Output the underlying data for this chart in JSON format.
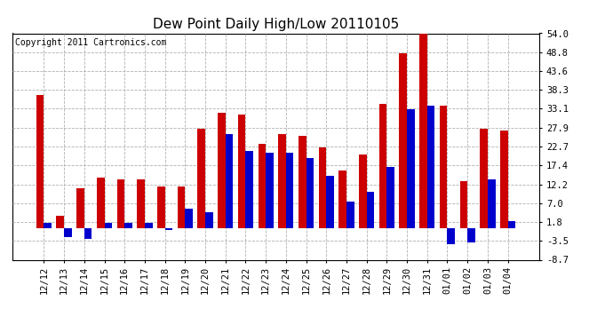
{
  "title": "Dew Point Daily High/Low 20110105",
  "copyright": "Copyright 2011 Cartronics.com",
  "dates": [
    "12/12",
    "12/13",
    "12/14",
    "12/15",
    "12/16",
    "12/17",
    "12/18",
    "12/19",
    "12/20",
    "12/21",
    "12/22",
    "12/23",
    "12/24",
    "12/25",
    "12/26",
    "12/27",
    "12/28",
    "12/29",
    "12/30",
    "12/31",
    "01/01",
    "01/02",
    "01/03",
    "01/04"
  ],
  "highs": [
    37.0,
    3.5,
    11.0,
    14.0,
    13.5,
    13.5,
    11.5,
    11.5,
    27.5,
    32.0,
    31.5,
    23.5,
    26.0,
    25.5,
    22.5,
    16.0,
    20.5,
    34.5,
    48.5,
    54.0,
    34.0,
    13.0,
    27.5,
    27.0
  ],
  "lows": [
    1.5,
    -2.5,
    -3.0,
    1.5,
    1.5,
    1.5,
    -0.5,
    5.5,
    4.5,
    26.0,
    21.5,
    21.0,
    21.0,
    19.5,
    14.5,
    7.5,
    10.0,
    17.0,
    33.0,
    34.0,
    -4.5,
    -4.0,
    13.5,
    2.0
  ],
  "high_color": "#cc0000",
  "low_color": "#0000cc",
  "bg_color": "#ffffff",
  "grid_color": "#b0b0b0",
  "ylim_min": -8.7,
  "ylim_max": 54.0,
  "yticks": [
    -8.7,
    -3.5,
    1.8,
    7.0,
    12.2,
    17.4,
    22.7,
    27.9,
    33.1,
    38.3,
    43.6,
    48.8,
    54.0
  ],
  "bar_width": 0.38,
  "title_fontsize": 11,
  "tick_fontsize": 7.5,
  "copyright_fontsize": 7
}
